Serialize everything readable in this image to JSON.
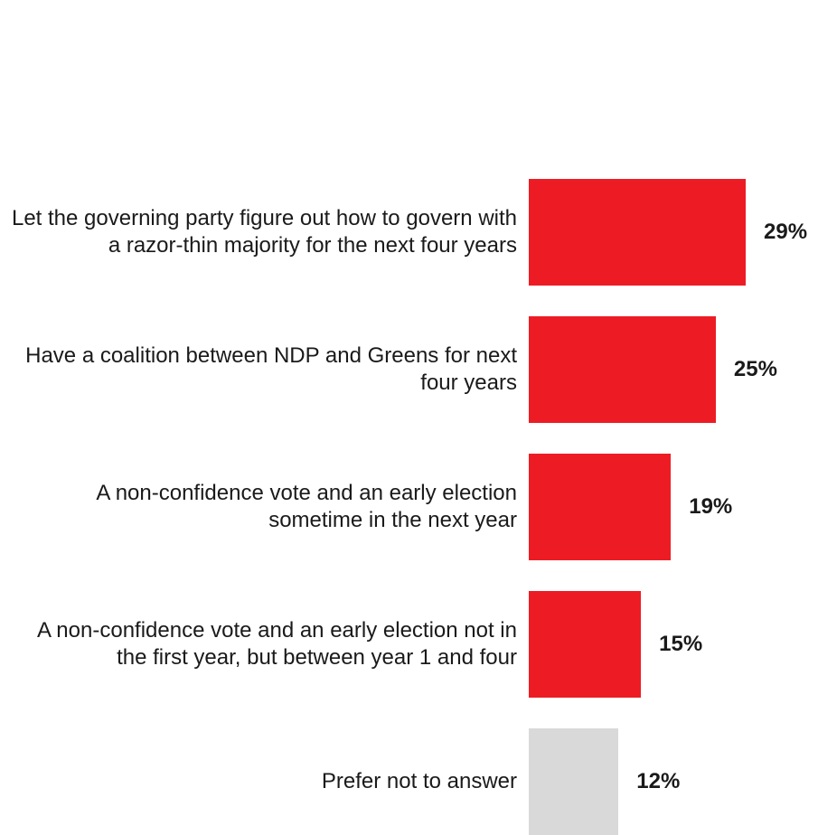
{
  "chart_data": {
    "type": "bar",
    "orientation": "horizontal",
    "categories": [
      "Let the governing party figure out how to govern with a razor-thin  majority for the next four years",
      "Have a coalition between NDP and Greens for next four years",
      "A non-confidence vote and an early election sometime in the next year",
      "A non-confidence vote and an early election not in the first year, but between year 1 and four",
      "Prefer not to answer"
    ],
    "values": [
      29,
      25,
      19,
      15,
      12
    ],
    "value_labels": [
      "29%",
      "25%",
      "19%",
      "15%",
      "12%"
    ],
    "colors": [
      "#ed1c24",
      "#ed1c24",
      "#ed1c24",
      "#ed1c24",
      "#d9d9d9"
    ],
    "title": "",
    "xlabel": "",
    "ylabel": "",
    "xlim": [
      0,
      29
    ],
    "grid": false,
    "legend": "none"
  }
}
